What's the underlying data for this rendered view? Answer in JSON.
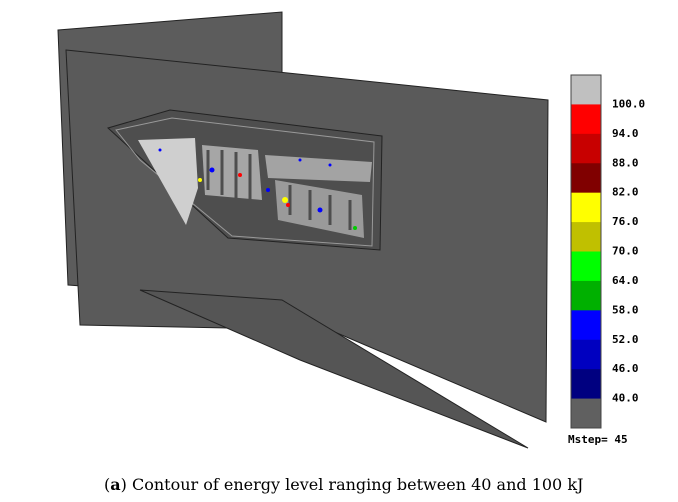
{
  "legend": {
    "labels": [
      "100.0",
      "94.0",
      "88.0",
      "82.0",
      "76.0",
      "70.0",
      "64.0",
      "58.0",
      "52.0",
      "46.0",
      "40.0"
    ],
    "colors": [
      "#c0c0c0",
      "#ff0000",
      "#c80000",
      "#800000",
      "#ffff00",
      "#c0c000",
      "#00ff00",
      "#00b000",
      "#0000ff",
      "#0000c0",
      "#000080",
      "#606060"
    ]
  },
  "mstep": "Mstep= 45",
  "caption": {
    "open": "(",
    "label": "a",
    "text": ") Contour of energy level ranging between 40 and 100 kJ"
  }
}
